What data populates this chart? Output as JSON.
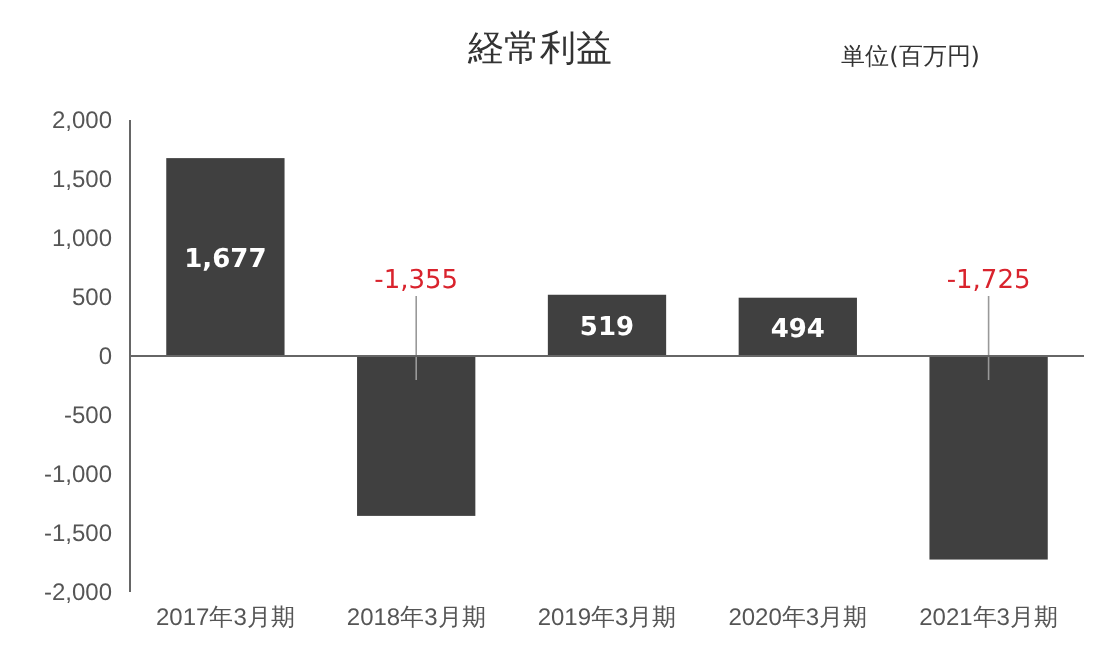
{
  "chart_data": {
    "type": "bar",
    "title": "経常利益",
    "annotations": [
      "単位(百万円)"
    ],
    "categories": [
      "2017年3月期",
      "2018年3月期",
      "2019年3月期",
      "2020年3月期",
      "2021年3月期"
    ],
    "values": [
      1677,
      -1355,
      519,
      494,
      -1725
    ],
    "color": "#404040",
    "value_labels": [
      "1,677",
      "-1,355",
      "519",
      "494",
      "-1,725"
    ],
    "ylim": [
      -2000,
      2000
    ],
    "yticks": [
      {
        "value": -2000,
        "label": "-2,000"
      },
      {
        "value": -1500,
        "label": "-1,500"
      },
      {
        "value": -1000,
        "label": "-1,000"
      },
      -500,
      0,
      500,
      {
        "value": 1000,
        "label": "1,000"
      },
      {
        "value": 1500,
        "label": "1,500"
      },
      {
        "value": 2000,
        "label": "2,000"
      }
    ]
  }
}
